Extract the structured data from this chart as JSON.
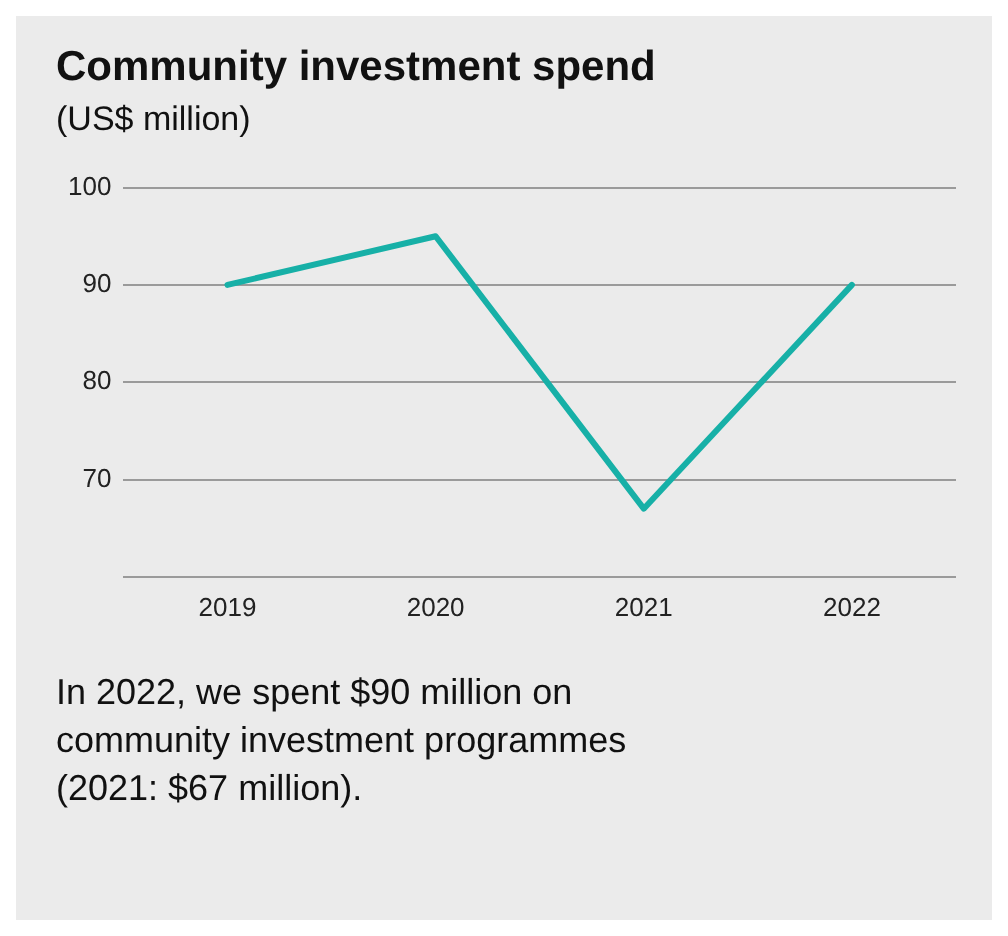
{
  "chart_data": {
    "type": "line",
    "title": "Community investment spend",
    "subtitle": "(US$ million)",
    "categories": [
      "2019",
      "2020",
      "2021",
      "2022"
    ],
    "series": [
      {
        "color": "#17b0a7",
        "values": [
          90,
          95,
          67,
          90
        ]
      }
    ],
    "ylim": [
      60,
      100
    ],
    "yticks": [
      {
        "value": 60,
        "label": null
      },
      70,
      80,
      90,
      100
    ],
    "grid": "y",
    "legend": false,
    "marker": "none",
    "line_style": "solid",
    "annotations": [
      "In 2022, we spent $90 million on community investment programmes (2021: $67 million)."
    ]
  }
}
